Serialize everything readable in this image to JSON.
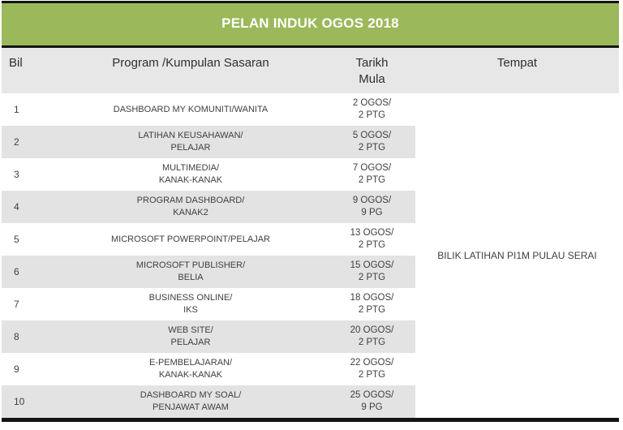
{
  "banner": {
    "title": "PELAN INDUK OGOS 2018"
  },
  "colors": {
    "banner_green": "#9BB95A",
    "header_bg": "#E7E7E7",
    "stripe_bg": "#E3E3E3",
    "border_black": "#141414",
    "text_dark": "#3F3F3F"
  },
  "table": {
    "columns": {
      "bil": "Bil",
      "program": "Program /Kumpulan Sasaran",
      "tarikh": "Tarikh\nMula",
      "tempat": "Tempat"
    },
    "rows": [
      {
        "bil": "1",
        "program": "DASHBOARD MY KOMUNITI/WANITA",
        "tarikh": "2 OGOS/\n2 PTG"
      },
      {
        "bil": "2",
        "program": "LATIHAN KEUSAHAWAN/\nPELAJAR",
        "tarikh": "5 OGOS/\n2 PTG"
      },
      {
        "bil": "3",
        "program": "MULTIMEDIA/\nKANAK-KANAK",
        "tarikh": "7 OGOS/\n2 PTG"
      },
      {
        "bil": "4",
        "program": "PROGRAM DASHBOARD/\nKANAK2",
        "tarikh": "9 OGOS/\n9 PG"
      },
      {
        "bil": "5",
        "program": "MICROSOFT POWERPOINT/PELAJAR",
        "tarikh": "13 OGOS/\n2 PTG"
      },
      {
        "bil": "6",
        "program": "MICROSOFT PUBLISHER/\nBELIA",
        "tarikh": "15 OGOS/\n2 PTG"
      },
      {
        "bil": "7",
        "program": "BUSINESS ONLINE/\nIKS",
        "tarikh": "18 OGOS/\n2 PTG"
      },
      {
        "bil": "8",
        "program": "WEB SITE/\nPELAJAR",
        "tarikh": "20 OGOS/\n2 PTG"
      },
      {
        "bil": "9",
        "program": "E-PEMBELAJARAN/\nKANAK-KANAK",
        "tarikh": "22 OGOS/\n2 PTG"
      },
      {
        "bil": "10",
        "program": "DASHBOARD MY SOAL/\nPENJAWAT AWAM",
        "tarikh": "25 OGOS/\n9 PG"
      }
    ],
    "tempat_value": "BILIK LATIHAN PI1M PULAU SERAI"
  }
}
